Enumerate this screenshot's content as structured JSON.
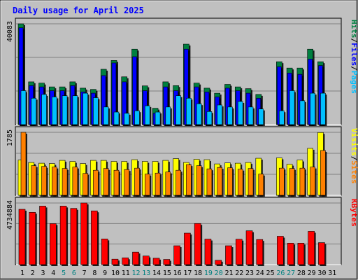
{
  "chart_data": [
    {
      "type": "bar",
      "title": "Daily usage for April 2025",
      "ymax_label": "40083",
      "legend": [
        "Pages",
        "Files",
        "Hits"
      ],
      "categories": [
        "1",
        "2",
        "3",
        "4",
        "5",
        "6",
        "7",
        "8",
        "9",
        "10",
        "11",
        "12",
        "13",
        "14",
        "15",
        "16",
        "17",
        "18",
        "19",
        "20",
        "21",
        "22",
        "23",
        "24",
        "25",
        "26",
        "27",
        "28",
        "29",
        "30",
        "31"
      ],
      "weekend_days": [
        "5",
        "6",
        "12",
        "13",
        "19",
        "20",
        "26",
        "27"
      ],
      "ylim": [
        0,
        40083
      ],
      "series": [
        {
          "name": "Hits",
          "values": [
            40083,
            17000,
            16500,
            15000,
            15000,
            17000,
            14500,
            14000,
            22000,
            25500,
            19000,
            30000,
            15400,
            6500,
            17000,
            15500,
            32000,
            16500,
            14500,
            12500,
            16000,
            15000,
            14300,
            12000,
            0,
            25000,
            22500,
            22500,
            30000,
            25000,
            0
          ]
        },
        {
          "name": "Files",
          "values": [
            38500,
            15500,
            15000,
            13500,
            13500,
            15500,
            13000,
            12500,
            19500,
            24500,
            17000,
            27000,
            13500,
            4500,
            15000,
            13500,
            30000,
            15000,
            13000,
            11000,
            14500,
            13500,
            12500,
            10500,
            0,
            23000,
            20500,
            20000,
            26000,
            23500,
            0
          ]
        },
        {
          "name": "Pages",
          "values": [
            13500,
            10500,
            12000,
            11000,
            11500,
            11500,
            12500,
            10700,
            7000,
            5000,
            4500,
            5500,
            7500,
            5000,
            7000,
            11500,
            10500,
            8300,
            5200,
            7800,
            7000,
            9200,
            7000,
            6200,
            0,
            5500,
            13500,
            9500,
            12500,
            12500,
            0
          ]
        }
      ]
    },
    {
      "type": "bar",
      "ymax_label": "1785",
      "legend": [
        "Sites",
        "Visits"
      ],
      "categories": [
        "1",
        "2",
        "3",
        "4",
        "5",
        "6",
        "7",
        "8",
        "9",
        "10",
        "11",
        "12",
        "13",
        "14",
        "15",
        "16",
        "17",
        "18",
        "19",
        "20",
        "21",
        "22",
        "23",
        "24",
        "25",
        "26",
        "27",
        "28",
        "29",
        "30",
        "31"
      ],
      "ylim": [
        0,
        1785
      ],
      "series": [
        {
          "name": "Visits",
          "values": [
            1000,
            930,
            910,
            900,
            990,
            960,
            900,
            990,
            990,
            960,
            960,
            1010,
            960,
            960,
            990,
            1040,
            930,
            1020,
            1010,
            890,
            920,
            910,
            930,
            1050,
            0,
            1060,
            880,
            1000,
            1330,
            1780,
            0
          ]
        },
        {
          "name": "Sites",
          "values": [
            1785,
            840,
            820,
            800,
            760,
            800,
            620,
            710,
            760,
            710,
            730,
            770,
            600,
            630,
            660,
            710,
            870,
            840,
            750,
            790,
            780,
            740,
            760,
            600,
            0,
            770,
            760,
            770,
            800,
            1270,
            0
          ]
        }
      ]
    },
    {
      "type": "bar",
      "ymax_label": "4734884",
      "legend": [
        "KBytes"
      ],
      "categories": [
        "1",
        "2",
        "3",
        "4",
        "5",
        "6",
        "7",
        "8",
        "9",
        "10",
        "11",
        "12",
        "13",
        "14",
        "15",
        "16",
        "17",
        "18",
        "19",
        "20",
        "21",
        "22",
        "23",
        "24",
        "25",
        "26",
        "27",
        "28",
        "29",
        "30",
        "31"
      ],
      "ylim": [
        0,
        4734884
      ],
      "series": [
        {
          "name": "KBytes",
          "values": [
            4250000,
            4020000,
            4500000,
            3150000,
            4500000,
            4320000,
            4734884,
            4130000,
            1970000,
            420000,
            520000,
            960000,
            660000,
            490000,
            400000,
            1450000,
            2420000,
            3160000,
            1960000,
            330000,
            1450000,
            1950000,
            2600000,
            1930000,
            0,
            2180000,
            1650000,
            1650000,
            2560000,
            1690000,
            0
          ]
        }
      ]
    }
  ],
  "colors": {
    "hits": "#008040",
    "files": "#0000ff",
    "pages": "#00c0ff",
    "visits": "#ffff00",
    "sites": "#ff8000",
    "kbytes": "#ff0000",
    "title": "#0000ff",
    "weekend": "#008080",
    "panel_bg": "#c0c0c0",
    "frame_bg": "#c0c0c0"
  }
}
